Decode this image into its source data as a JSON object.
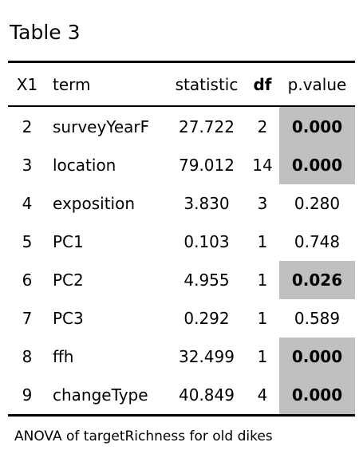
{
  "caption": "Table 3",
  "columns": [
    "X1",
    "term",
    "statistic",
    "df",
    "p.value"
  ],
  "rows": [
    {
      "x1": "2",
      "term": "surveyYearF",
      "statistic": "27.722",
      "df": "2",
      "p_value": "0.000",
      "significant": true
    },
    {
      "x1": "3",
      "term": "location",
      "statistic": "79.012",
      "df": "14",
      "p_value": "0.000",
      "significant": true
    },
    {
      "x1": "4",
      "term": "exposition",
      "statistic": "3.830",
      "df": "3",
      "p_value": "0.280",
      "significant": false
    },
    {
      "x1": "5",
      "term": "PC1",
      "statistic": "0.103",
      "df": "1",
      "p_value": "0.748",
      "significant": false
    },
    {
      "x1": "6",
      "term": "PC2",
      "statistic": "4.955",
      "df": "1",
      "p_value": "0.026",
      "significant": true
    },
    {
      "x1": "7",
      "term": "PC3",
      "statistic": "0.292",
      "df": "1",
      "p_value": "0.589",
      "significant": false
    },
    {
      "x1": "8",
      "term": "ffh",
      "statistic": "32.499",
      "df": "1",
      "p_value": "0.000",
      "significant": true
    },
    {
      "x1": "9",
      "term": "changeType",
      "statistic": "40.849",
      "df": "4",
      "p_value": "0.000",
      "significant": true
    }
  ],
  "footnote": "ANOVA of targetRichness for old dikes",
  "colors": {
    "highlight": "#c0c0c0",
    "rule": "#000000",
    "text": "#000000"
  }
}
